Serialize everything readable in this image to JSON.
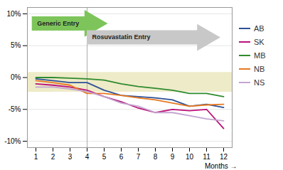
{
  "chart_data": {
    "type": "line",
    "x_label": "Months",
    "x": [
      1,
      2,
      3,
      4,
      5,
      6,
      7,
      8,
      9,
      10,
      11,
      12
    ],
    "series": [
      {
        "name": "AB",
        "color": "#2E5096",
        "values": [
          -0.2,
          -0.5,
          -0.8,
          -0.8,
          -2.0,
          -2.8,
          -3.0,
          -3.2,
          -3.5,
          -4.5,
          -4.2,
          -4.7
        ]
      },
      {
        "name": "SK",
        "color": "#BB1177",
        "values": [
          -1.0,
          -1.2,
          -1.5,
          -2.0,
          -3.0,
          -3.8,
          -4.8,
          -5.5,
          -5.0,
          -5.2,
          -5.0,
          -8.0
        ]
      },
      {
        "name": "MB",
        "color": "#2E8B2E",
        "values": [
          0.0,
          0.0,
          -0.1,
          -0.2,
          -0.4,
          -1.0,
          -1.4,
          -1.7,
          -2.0,
          -2.5,
          -2.5,
          -3.0
        ]
      },
      {
        "name": "NB",
        "color": "#E87820",
        "values": [
          -0.5,
          -0.8,
          -1.2,
          -2.5,
          -2.5,
          -2.8,
          -3.2,
          -3.5,
          -4.0,
          -4.5,
          -4.3,
          -4.2
        ]
      },
      {
        "name": "NS",
        "color": "#C4A4D0",
        "values": [
          -1.5,
          -1.5,
          -1.8,
          -2.2,
          -3.0,
          -4.0,
          -4.5,
          -5.5,
          -5.5,
          -6.0,
          -6.5,
          -6.8
        ]
      }
    ],
    "xlim": [
      0.5,
      12.5
    ],
    "xticks": [
      1,
      2,
      3,
      4,
      5,
      6,
      7,
      8,
      9,
      10,
      11,
      12
    ],
    "ylim": [
      -11,
      11
    ],
    "yticks": [
      {
        "value": -10,
        "label": "-10%"
      },
      {
        "value": -5,
        "label": "-5%"
      },
      {
        "value": 0,
        "label": "0%"
      },
      {
        "value": 5,
        "label": "5%"
      },
      {
        "value": 10,
        "label": "10%"
      }
    ],
    "grid": true,
    "legend": "right",
    "band": {
      "y": [
        -2.3,
        0.8
      ],
      "color": "#EEEBC8"
    },
    "vline": {
      "x": 4,
      "color": "#AAAAAA"
    },
    "annotations": [
      {
        "text": "Generic Entry",
        "x": [
          0.78,
          4.3
        ],
        "y": 8.5,
        "color": "#7DC55A"
      },
      {
        "text": "Rosuvastatin Entry",
        "x": [
          4.0,
          10.9
        ],
        "y": 6.3,
        "color": "#C8C8C8"
      }
    ]
  }
}
